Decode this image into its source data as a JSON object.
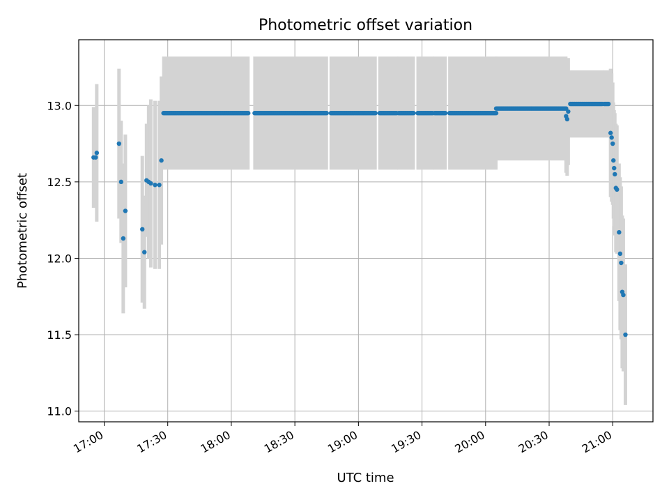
{
  "chart_data": {
    "type": "scatter",
    "title": "Photometric offset variation",
    "xlabel": "UTC time",
    "ylabel": "Photometric offset",
    "xlim": [
      "16:48",
      "21:19"
    ],
    "ylim": [
      10.93,
      13.43
    ],
    "x_ticks": [
      "17:00",
      "17:30",
      "18:00",
      "18:30",
      "19:00",
      "19:30",
      "20:00",
      "20:30",
      "21:00"
    ],
    "y_ticks": [
      "11.0",
      "11.5",
      "12.0",
      "12.5",
      "13.0"
    ],
    "grid": true,
    "colors": {
      "points": "#1f77b4",
      "error_bars": "#d3d3d3"
    },
    "series": [
      {
        "style": "errorbar",
        "points": [
          {
            "x": "16:55",
            "y": 12.66,
            "yerr": 0.33
          },
          {
            "x": "16:56",
            "y": 12.66,
            "yerr": 0.3
          },
          {
            "x": "16:56:30",
            "y": 12.69,
            "yerr": 0.45
          },
          {
            "x": "17:07",
            "y": 12.75,
            "yerr": 0.49
          },
          {
            "x": "17:08",
            "y": 12.5,
            "yerr": 0.4
          },
          {
            "x": "17:09",
            "y": 12.13,
            "yerr": 0.49
          },
          {
            "x": "17:10",
            "y": 12.31,
            "yerr": 0.5
          },
          {
            "x": "17:18",
            "y": 12.19,
            "yerr": 0.48
          },
          {
            "x": "17:19",
            "y": 12.04,
            "yerr": 0.37
          },
          {
            "x": "17:20",
            "y": 12.51,
            "yerr": 0.37
          },
          {
            "x": "17:21",
            "y": 12.5,
            "yerr": 0.5
          },
          {
            "x": "17:22",
            "y": 12.49,
            "yerr": 0.55
          },
          {
            "x": "17:24",
            "y": 12.48,
            "yerr": 0.55
          },
          {
            "x": "17:26",
            "y": 12.48,
            "yerr": 0.55
          },
          {
            "x": "17:27",
            "y": 12.64,
            "yerr": 0.55
          },
          {
            "x": "20:38",
            "y": 12.93,
            "yerr": 0.37
          },
          {
            "x": "20:38:30",
            "y": 12.91,
            "yerr": 0.37
          },
          {
            "x": "20:39",
            "y": 12.96,
            "yerr": 0.35
          },
          {
            "x": "20:59",
            "y": 12.82,
            "yerr": 0.42
          },
          {
            "x": "20:59:30",
            "y": 12.79,
            "yerr": 0.42
          },
          {
            "x": "21:00",
            "y": 12.75,
            "yerr": 0.4
          },
          {
            "x": "21:00:20",
            "y": 12.64,
            "yerr": 0.38
          },
          {
            "x": "21:00:40",
            "y": 12.59,
            "yerr": 0.38
          },
          {
            "x": "21:01",
            "y": 12.55,
            "yerr": 0.4
          },
          {
            "x": "21:01:30",
            "y": 12.46,
            "yerr": 0.42
          },
          {
            "x": "21:02",
            "y": 12.45,
            "yerr": 0.42
          },
          {
            "x": "21:03",
            "y": 12.17,
            "yerr": 0.45
          },
          {
            "x": "21:03:30",
            "y": 12.03,
            "yerr": 0.5
          },
          {
            "x": "21:04",
            "y": 11.97,
            "yerr": 0.5
          },
          {
            "x": "21:04:30",
            "y": 11.78,
            "yerr": 0.5
          },
          {
            "x": "21:05",
            "y": 11.76,
            "yerr": 0.5
          },
          {
            "x": "21:06",
            "y": 11.5,
            "yerr": 0.46
          }
        ]
      },
      {
        "style": "errorbar-dense",
        "segments": [
          {
            "start": "17:28",
            "end": "18:08",
            "y": 12.95,
            "yerr": 0.37
          },
          {
            "start": "18:11",
            "end": "18:45",
            "y": 12.95,
            "yerr": 0.37
          },
          {
            "start": "18:47",
            "end": "19:08",
            "y": 12.95,
            "yerr": 0.37
          },
          {
            "start": "19:10",
            "end": "19:18",
            "y": 12.95,
            "yerr": 0.37
          },
          {
            "start": "19:19",
            "end": "19:26",
            "y": 12.95,
            "yerr": 0.37
          },
          {
            "start": "19:28",
            "end": "19:35",
            "y": 12.95,
            "yerr": 0.37
          },
          {
            "start": "19:36",
            "end": "19:41",
            "y": 12.95,
            "yerr": 0.37
          },
          {
            "start": "19:43",
            "end": "20:05",
            "y": 12.95,
            "yerr": 0.37
          },
          {
            "start": "20:05",
            "end": "20:38",
            "y": 12.98,
            "yerr": 0.34
          },
          {
            "start": "20:40",
            "end": "20:55",
            "y": 13.01,
            "yerr": 0.22
          },
          {
            "start": "20:56",
            "end": "20:58",
            "y": 13.01,
            "yerr": 0.22
          }
        ]
      }
    ]
  }
}
